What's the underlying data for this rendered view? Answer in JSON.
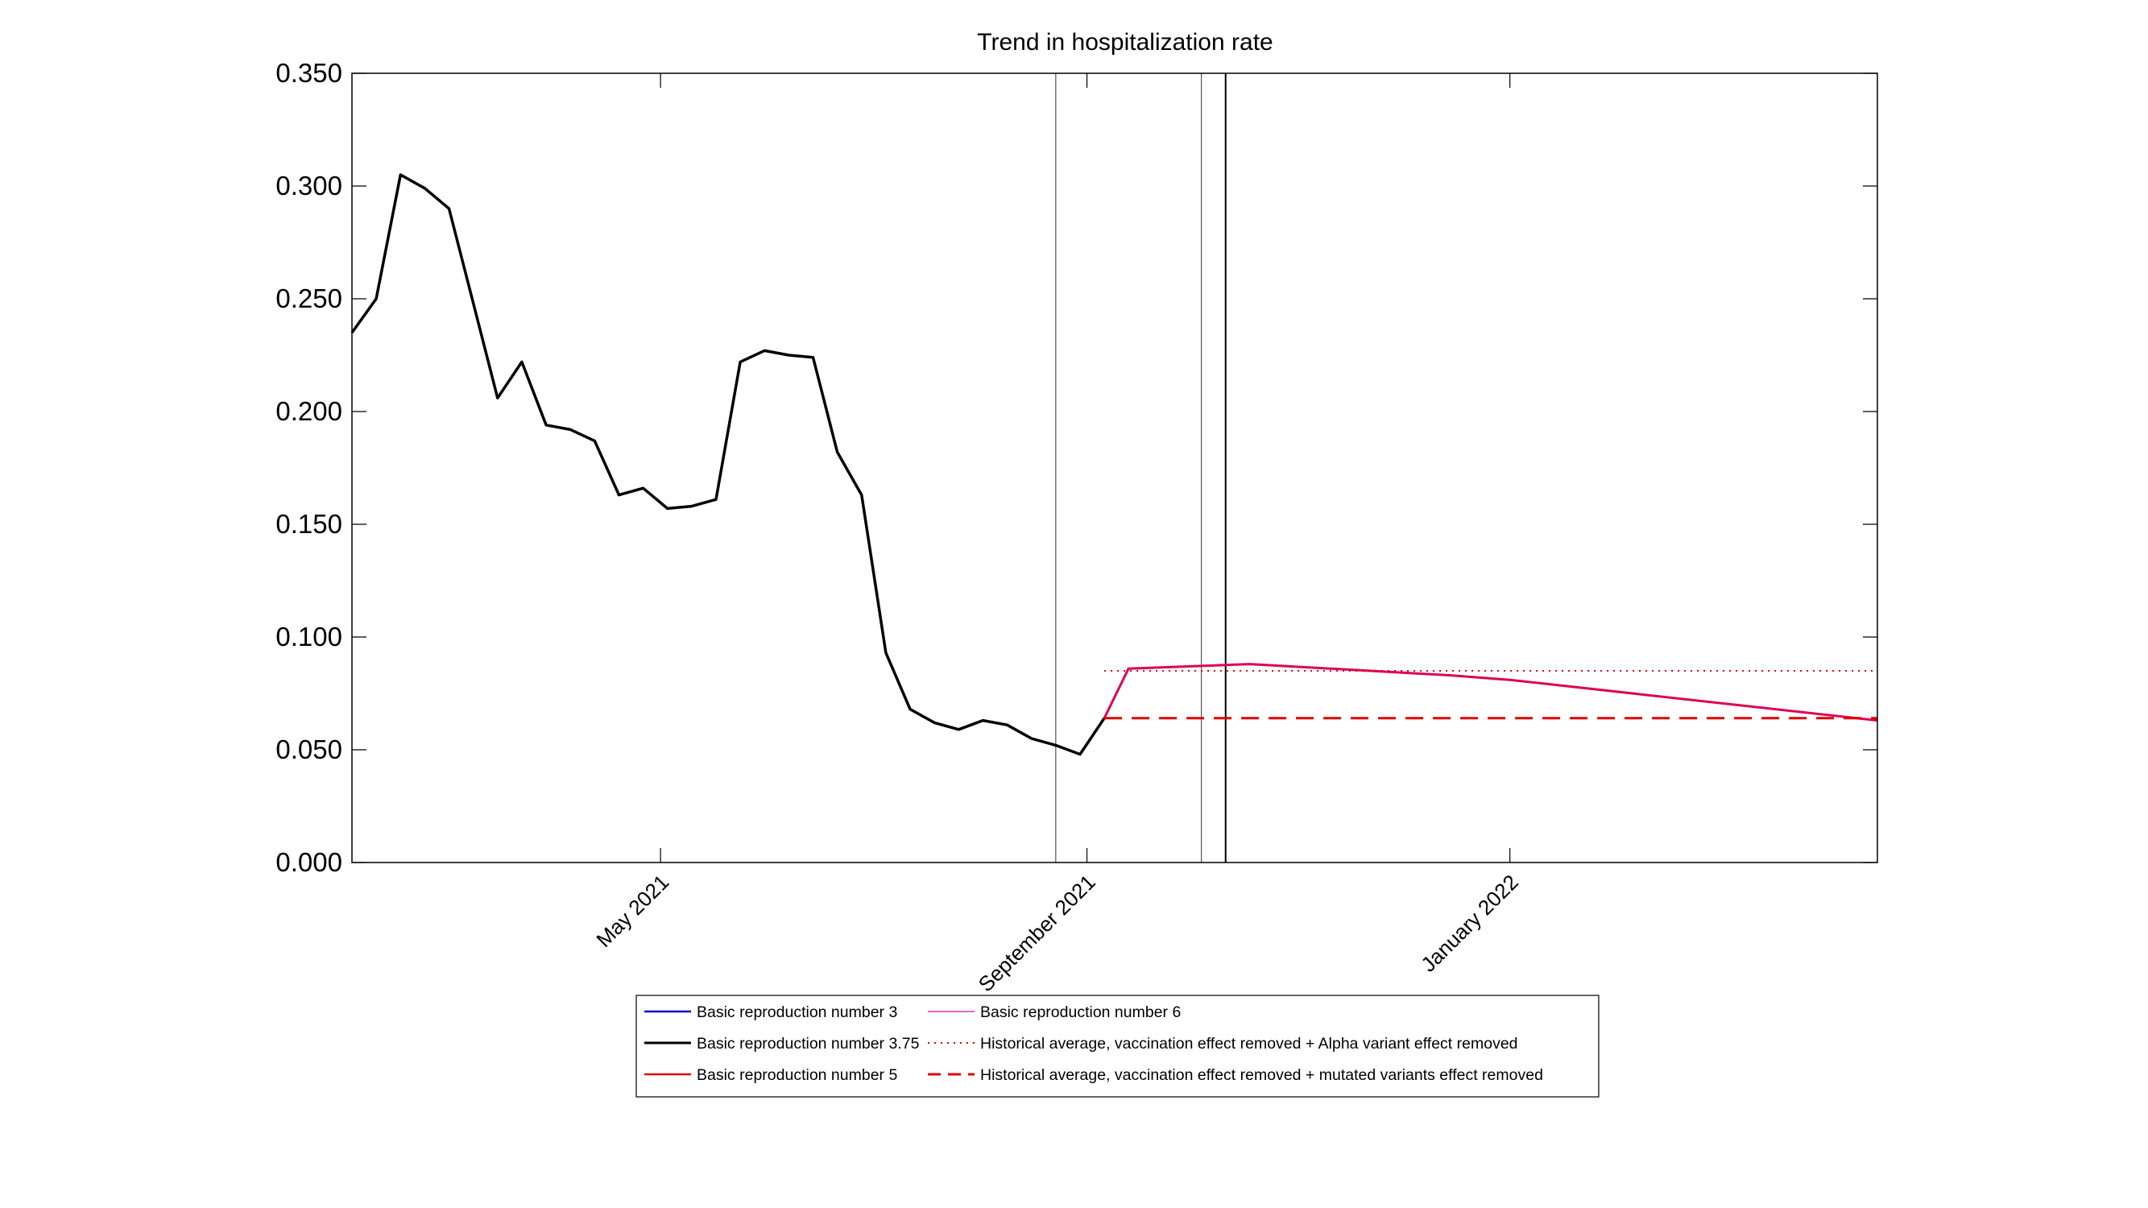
{
  "chart_data": {
    "type": "line",
    "title": "Trend in hospitalization rate",
    "xlabel": "",
    "ylabel": "",
    "x_range": [
      "2021-02-01",
      "2022-04-17"
    ],
    "ylim": [
      0,
      0.35
    ],
    "y_ticks": [
      0,
      0.05,
      0.1,
      0.15,
      0.2,
      0.25,
      0.3,
      0.35
    ],
    "y_tick_labels": [
      "0.000",
      "0.050",
      "0.100",
      "0.150",
      "0.200",
      "0.250",
      "0.300",
      "0.350"
    ],
    "x_ticks": [
      {
        "date": "2021-05-01",
        "label": "May 2021"
      },
      {
        "date": "2021-09-01",
        "label": "September 2021"
      },
      {
        "date": "2022-01-01",
        "label": "January 2022"
      }
    ],
    "vertical_lines": [
      "2021-08-23",
      "2021-10-04",
      "2021-10-11"
    ],
    "grid": false,
    "legend_position": "below the plot",
    "legend_columns": 2,
    "series": [
      {
        "name": "Basic reproduction number 3",
        "color": "#0000cc",
        "style": "solid",
        "width": 2.5,
        "points": []
      },
      {
        "name": "Basic reproduction number 3.75",
        "color": "#000000",
        "style": "solid",
        "width": 3.5,
        "points": [
          [
            "2021-02-01",
            0.235
          ],
          [
            "2021-02-08",
            0.25
          ],
          [
            "2021-02-15",
            0.305
          ],
          [
            "2021-02-22",
            0.299
          ],
          [
            "2021-03-01",
            0.29
          ],
          [
            "2021-03-08",
            0.248
          ],
          [
            "2021-03-15",
            0.206
          ],
          [
            "2021-03-22",
            0.222
          ],
          [
            "2021-03-29",
            0.194
          ],
          [
            "2021-04-05",
            0.192
          ],
          [
            "2021-04-12",
            0.187
          ],
          [
            "2021-04-19",
            0.163
          ],
          [
            "2021-04-26",
            0.166
          ],
          [
            "2021-05-03",
            0.157
          ],
          [
            "2021-05-10",
            0.158
          ],
          [
            "2021-05-17",
            0.161
          ],
          [
            "2021-05-24",
            0.222
          ],
          [
            "2021-05-31",
            0.227
          ],
          [
            "2021-06-07",
            0.225
          ],
          [
            "2021-06-14",
            0.224
          ],
          [
            "2021-06-21",
            0.182
          ],
          [
            "2021-06-28",
            0.163
          ],
          [
            "2021-07-05",
            0.093
          ],
          [
            "2021-07-12",
            0.068
          ],
          [
            "2021-07-19",
            0.062
          ],
          [
            "2021-07-26",
            0.059
          ],
          [
            "2021-08-02",
            0.063
          ],
          [
            "2021-08-09",
            0.061
          ],
          [
            "2021-08-16",
            0.055
          ],
          [
            "2021-08-23",
            0.052
          ],
          [
            "2021-08-30",
            0.048
          ],
          [
            "2021-09-06",
            0.064
          ]
        ]
      },
      {
        "name": "Basic reproduction number 5",
        "color": "#dd0000",
        "style": "solid",
        "width": 2.5,
        "points": []
      },
      {
        "name": "Basic reproduction number 6",
        "color": "#cc33cc",
        "style": "solid",
        "width": 1.5,
        "points": []
      },
      {
        "name": "",
        "color": "#dd0055",
        "style": "solid",
        "width": 3,
        "points": [
          [
            "2021-09-06",
            0.064
          ],
          [
            "2021-09-13",
            0.086
          ],
          [
            "2021-10-18",
            0.088
          ],
          [
            "2021-12-15",
            0.083
          ],
          [
            "2022-01-01",
            0.081
          ],
          [
            "2022-04-17",
            0.063
          ]
        ]
      },
      {
        "name": "Historical average, vaccination effect removed + Alpha variant effect removed",
        "color": "#dd0000",
        "style": "dotted",
        "width": 2,
        "points": [
          [
            "2021-09-06",
            0.085
          ],
          [
            "2022-04-17",
            0.085
          ]
        ]
      },
      {
        "name": "Historical average, vaccination effect removed + mutated variants effect removed",
        "color": "#dd0000",
        "style": "dashed",
        "width": 3,
        "points": [
          [
            "2021-09-06",
            0.064
          ],
          [
            "2022-04-17",
            0.064
          ]
        ]
      }
    ]
  }
}
